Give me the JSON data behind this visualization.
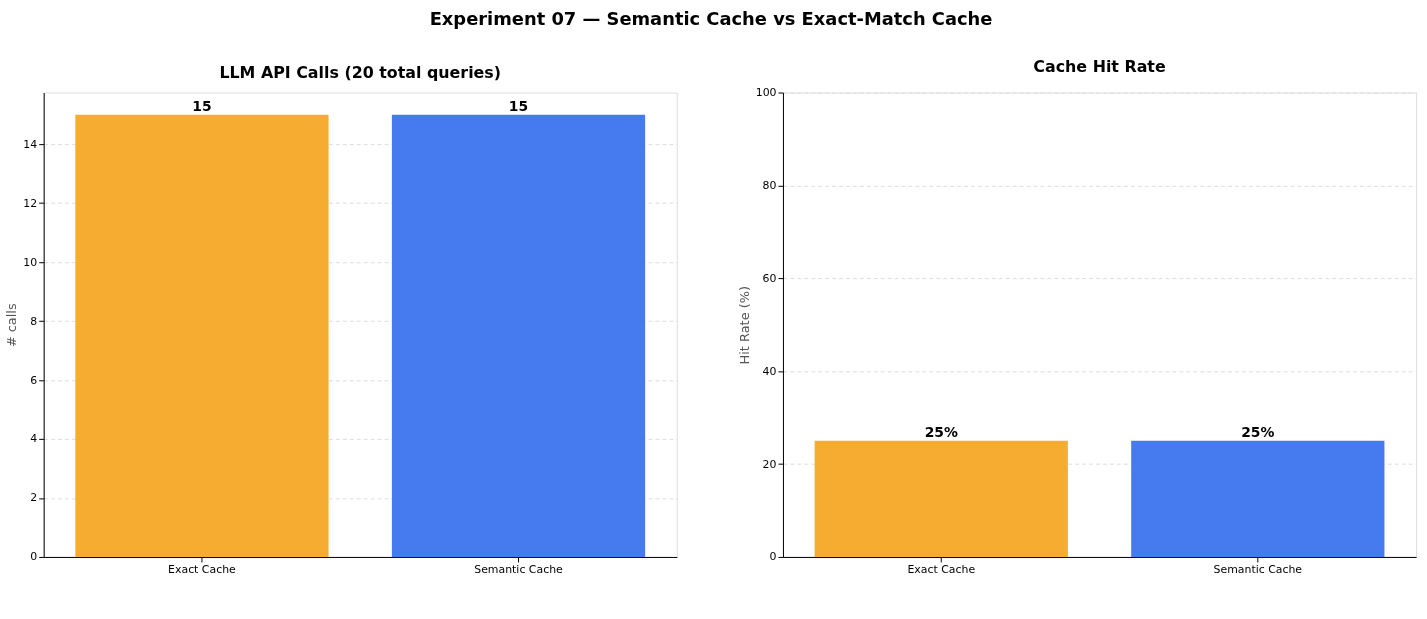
{
  "chart_data": [
    {
      "type": "bar",
      "title": "LLM API Calls (20 total queries)",
      "ylabel": "# calls",
      "categories": [
        "Exact Cache",
        "Semantic Cache"
      ],
      "values": [
        15,
        15
      ],
      "colors": [
        "#f5ac30",
        "#467bf0"
      ],
      "ylim": [
        0,
        15.75
      ],
      "yticks": [
        0,
        2,
        4,
        6,
        8,
        10,
        12,
        14
      ],
      "grid": "y",
      "data_labels": true,
      "annotations": [
        "Experiment 07 — Semantic Cache vs Exact-Match Cache"
      ]
    },
    {
      "type": "bar",
      "title": "Cache Hit Rate",
      "ylabel": "Hit Rate (%)",
      "categories": [
        "Exact Cache",
        "Semantic Cache"
      ],
      "values": [
        25,
        25
      ],
      "colors": [
        "#f5ac30",
        "#467bf0"
      ],
      "ylim": [
        0,
        100
      ],
      "yticks": [
        0,
        20,
        40,
        60,
        80,
        100
      ],
      "grid": "y",
      "value_labels": [
        "25%",
        "25%"
      ]
    }
  ]
}
